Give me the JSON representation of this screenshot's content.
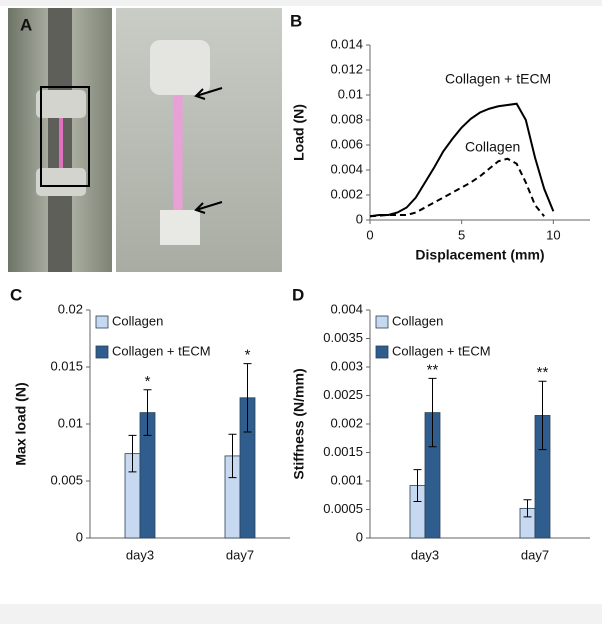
{
  "photo_panel": {
    "label": "A"
  },
  "chart_data": [
    {
      "type": "line",
      "label": "B",
      "xlabel": "Displacement (mm)",
      "ylabel": "Load (N)",
      "xlim": [
        0,
        12
      ],
      "xticks": [
        0,
        5,
        10
      ],
      "ylim": [
        0,
        0.014
      ],
      "yticks": [
        0,
        0.002,
        0.004,
        0.006,
        0.008,
        0.01,
        0.012,
        0.014
      ],
      "grid": false,
      "series": [
        {
          "name": "Collagen + tECM",
          "color": "#000000",
          "line_style": "solid",
          "x": [
            0,
            0.5,
            1,
            1.5,
            2,
            2.5,
            3,
            3.5,
            4,
            4.5,
            5,
            5.5,
            6,
            6.5,
            7,
            7.5,
            8,
            8.5,
            9,
            9.5,
            10
          ],
          "values": [
            0.0003,
            0.0004,
            0.0004,
            0.0006,
            0.001,
            0.0018,
            0.003,
            0.0042,
            0.0055,
            0.0065,
            0.0074,
            0.0081,
            0.0086,
            0.0089,
            0.0091,
            0.0092,
            0.0093,
            0.008,
            0.005,
            0.0025,
            0.0007
          ]
        },
        {
          "name": "Collagen",
          "color": "#000000",
          "line_style": "dashed",
          "x": [
            0,
            1,
            2,
            2.5,
            3,
            3.5,
            4,
            4.5,
            5,
            5.5,
            6,
            6.5,
            7,
            7.5,
            8,
            8.5,
            9,
            9.5
          ],
          "values": [
            0.0003,
            0.0004,
            0.0004,
            0.0006,
            0.001,
            0.0014,
            0.0018,
            0.0022,
            0.0026,
            0.003,
            0.0035,
            0.0041,
            0.0047,
            0.0049,
            0.0045,
            0.003,
            0.0012,
            0.0003
          ]
        }
      ]
    },
    {
      "type": "bar",
      "label": "C",
      "ylabel": "Max load (N)",
      "categories": [
        "day3",
        "day7"
      ],
      "ylim": [
        0,
        0.02
      ],
      "yticks": [
        0,
        0.005,
        0.01,
        0.015,
        0.02
      ],
      "legend": "upper left",
      "significance": [
        "*",
        "*"
      ],
      "series": [
        {
          "name": "Collagen",
          "color": "#c6d9f0",
          "values": [
            0.0074,
            0.0072
          ],
          "errors": [
            0.0016,
            0.0019
          ]
        },
        {
          "name": "Collagen + tECM",
          "color": "#2f5e8e",
          "values": [
            0.011,
            0.0123
          ],
          "errors": [
            0.002,
            0.003
          ]
        }
      ]
    },
    {
      "type": "bar",
      "label": "D",
      "ylabel": "Stiffness (N/mm)",
      "categories": [
        "day3",
        "day7"
      ],
      "ylim": [
        0,
        0.004
      ],
      "yticks": [
        0,
        0.0005,
        0.001,
        0.0015,
        0.002,
        0.0025,
        0.003,
        0.0035,
        0.004
      ],
      "legend": "upper left",
      "significance": [
        "**",
        "**"
      ],
      "series": [
        {
          "name": "Collagen",
          "color": "#c6d9f0",
          "values": [
            0.00092,
            0.00052
          ],
          "errors": [
            0.00028,
            0.00015
          ]
        },
        {
          "name": "Collagen + tECM",
          "color": "#2f5e8e",
          "values": [
            0.0022,
            0.00215
          ],
          "errors": [
            0.0006,
            0.0006
          ]
        }
      ]
    }
  ]
}
